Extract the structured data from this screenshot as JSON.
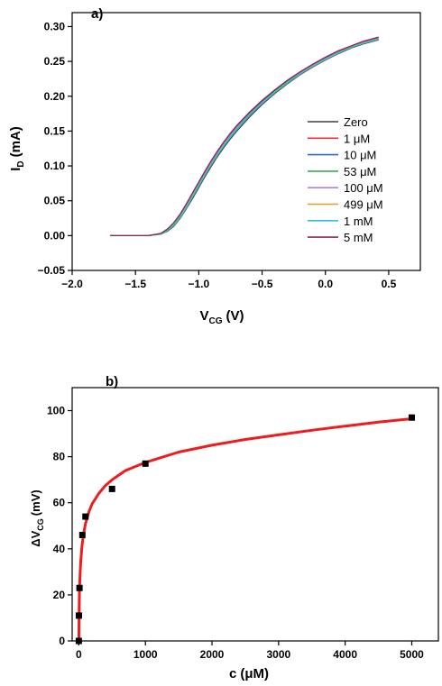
{
  "chart_data": [
    {
      "panel_label": "a)",
      "type": "line",
      "xlabel": {
        "main": "V",
        "sub": "CG",
        "unit": "(V)"
      },
      "ylabel": {
        "main": "I",
        "sub": "D",
        "unit": "(mA)"
      },
      "xlim": [
        -2.0,
        0.75
      ],
      "ylim": [
        -0.05,
        0.32
      ],
      "xticks": [
        -2.0,
        -1.5,
        -1.0,
        -0.5,
        0.0,
        0.5
      ],
      "xtick_labels": [
        "−2.0",
        "−1.5",
        "−1.0",
        "−0.5",
        "0.0",
        "0.5"
      ],
      "yticks": [
        -0.05,
        0.0,
        0.05,
        0.1,
        0.15,
        0.2,
        0.25,
        0.3
      ],
      "ytick_labels": [
        "−0.05",
        "0.00",
        "0.05",
        "0.10",
        "0.15",
        "0.20",
        "0.25",
        "0.30"
      ],
      "legend_position": "right",
      "x": [
        -1.7,
        -1.5,
        -1.4,
        -1.3,
        -1.25,
        -1.2,
        -1.15,
        -1.1,
        -1.05,
        -1.0,
        -0.95,
        -0.9,
        -0.85,
        -0.8,
        -0.75,
        -0.7,
        -0.6,
        -0.5,
        -0.4,
        -0.3,
        -0.2,
        -0.1,
        0.0,
        0.1,
        0.2,
        0.3,
        0.42
      ],
      "series": [
        {
          "name": "Zero",
          "color": "#404040",
          "values": [
            0.0,
            0.0,
            0.0,
            0.002,
            0.006,
            0.013,
            0.024,
            0.038,
            0.053,
            0.069,
            0.085,
            0.1,
            0.114,
            0.127,
            0.139,
            0.15,
            0.17,
            0.188,
            0.204,
            0.218,
            0.231,
            0.242,
            0.252,
            0.261,
            0.269,
            0.275,
            0.281
          ]
        },
        {
          "name": "1 μM",
          "color": "#e8303a",
          "values": [
            0.0,
            0.0,
            0.0,
            0.003,
            0.009,
            0.017,
            0.029,
            0.044,
            0.06,
            0.076,
            0.092,
            0.107,
            0.121,
            0.134,
            0.146,
            0.157,
            0.176,
            0.193,
            0.208,
            0.222,
            0.234,
            0.245,
            0.255,
            0.264,
            0.271,
            0.278,
            0.284
          ]
        },
        {
          "name": "10 μM",
          "color": "#2a6fbf",
          "values": [
            0.0,
            0.0,
            0.0,
            0.003,
            0.009,
            0.017,
            0.028,
            0.043,
            0.059,
            0.075,
            0.091,
            0.106,
            0.12,
            0.133,
            0.145,
            0.156,
            0.175,
            0.192,
            0.207,
            0.221,
            0.233,
            0.244,
            0.254,
            0.263,
            0.27,
            0.277,
            0.283
          ]
        },
        {
          "name": "53 μM",
          "color": "#3aa860",
          "values": [
            0.0,
            0.0,
            0.0,
            0.002,
            0.007,
            0.014,
            0.025,
            0.039,
            0.055,
            0.071,
            0.087,
            0.102,
            0.116,
            0.129,
            0.141,
            0.152,
            0.172,
            0.19,
            0.205,
            0.219,
            0.232,
            0.243,
            0.253,
            0.262,
            0.27,
            0.276,
            0.282
          ]
        },
        {
          "name": "100 μM",
          "color": "#b07ee0",
          "values": [
            0.0,
            0.0,
            0.0,
            0.002,
            0.008,
            0.016,
            0.027,
            0.042,
            0.058,
            0.074,
            0.09,
            0.105,
            0.119,
            0.132,
            0.144,
            0.155,
            0.174,
            0.191,
            0.206,
            0.22,
            0.233,
            0.244,
            0.254,
            0.263,
            0.27,
            0.277,
            0.283
          ]
        },
        {
          "name": "499 μM",
          "color": "#e0a020",
          "values": [
            0.0,
            0.0,
            0.0,
            0.002,
            0.007,
            0.015,
            0.026,
            0.04,
            0.056,
            0.072,
            0.088,
            0.103,
            0.117,
            0.13,
            0.142,
            0.153,
            0.173,
            0.19,
            0.206,
            0.22,
            0.232,
            0.243,
            0.253,
            0.262,
            0.27,
            0.276,
            0.282
          ]
        },
        {
          "name": "1 mM",
          "color": "#2ec4d8",
          "values": [
            0.0,
            0.0,
            0.0,
            0.002,
            0.007,
            0.015,
            0.026,
            0.04,
            0.056,
            0.072,
            0.088,
            0.103,
            0.117,
            0.13,
            0.142,
            0.153,
            0.173,
            0.19,
            0.206,
            0.22,
            0.232,
            0.243,
            0.253,
            0.262,
            0.27,
            0.276,
            0.282
          ]
        },
        {
          "name": "5 mM",
          "color": "#8a2a45",
          "values": [
            0.0,
            0.0,
            0.0,
            0.003,
            0.009,
            0.018,
            0.03,
            0.045,
            0.061,
            0.077,
            0.093,
            0.108,
            0.122,
            0.135,
            0.147,
            0.158,
            0.177,
            0.194,
            0.209,
            0.223,
            0.235,
            0.246,
            0.256,
            0.265,
            0.272,
            0.279,
            0.285
          ]
        }
      ]
    },
    {
      "panel_label": "b)",
      "type": "scatter",
      "xlabel": {
        "main": "c",
        "sub": "",
        "unit": "(μM)"
      },
      "ylabel": {
        "main": "ΔV",
        "sub": "CG",
        "unit": "(mV)"
      },
      "xlim": [
        -100,
        5400
      ],
      "ylim": [
        0,
        110
      ],
      "xticks": [
        0,
        1000,
        2000,
        3000,
        4000,
        5000
      ],
      "xtick_labels": [
        "0",
        "1000",
        "2000",
        "3000",
        "4000",
        "5000"
      ],
      "yticks": [
        0,
        20,
        40,
        60,
        80,
        100
      ],
      "ytick_labels": [
        "0",
        "20",
        "40",
        "60",
        "80",
        "100"
      ],
      "points": {
        "x": [
          0,
          1,
          10,
          53,
          100,
          499,
          1000,
          5000
        ],
        "y": [
          0,
          11,
          23,
          46,
          54,
          66,
          77,
          97
        ]
      },
      "fit": {
        "color": "#ee1c1c",
        "x": [
          0,
          5,
          10,
          20,
          30,
          50,
          75,
          100,
          150,
          200,
          300,
          400,
          500,
          700,
          1000,
          1500,
          2000,
          2500,
          3000,
          3500,
          4000,
          4500,
          5000
        ],
        "y": [
          0,
          15,
          22,
          30,
          35,
          42,
          47,
          51,
          56,
          59.5,
          64,
          67.5,
          70,
          74,
          77.5,
          82,
          85,
          87.5,
          89.5,
          91.5,
          93.3,
          95,
          96.5
        ]
      }
    }
  ]
}
